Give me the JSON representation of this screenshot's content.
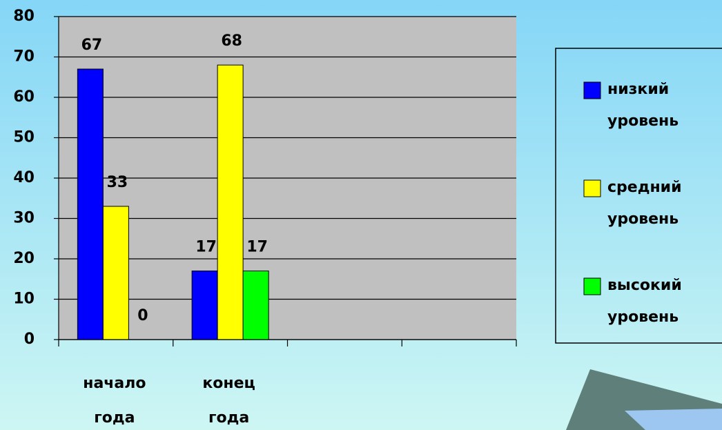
{
  "chart_data": {
    "type": "bar",
    "categories": [
      "начало года",
      "конец года",
      null,
      null
    ],
    "series": [
      {
        "name": "низкий уровень",
        "color": "#0000ff",
        "values": [
          67,
          17,
          null,
          null
        ]
      },
      {
        "name": "средний уровень",
        "color": "#ffff00",
        "values": [
          33,
          68,
          null,
          null
        ]
      },
      {
        "name": "высокий уровень",
        "color": "#00ff00",
        "values": [
          0,
          17,
          null,
          null
        ]
      }
    ],
    "ylim": [
      0,
      80
    ],
    "yticks": [
      0,
      10,
      20,
      30,
      40,
      50,
      60,
      70,
      80
    ],
    "grid": true,
    "legend": "right"
  }
}
